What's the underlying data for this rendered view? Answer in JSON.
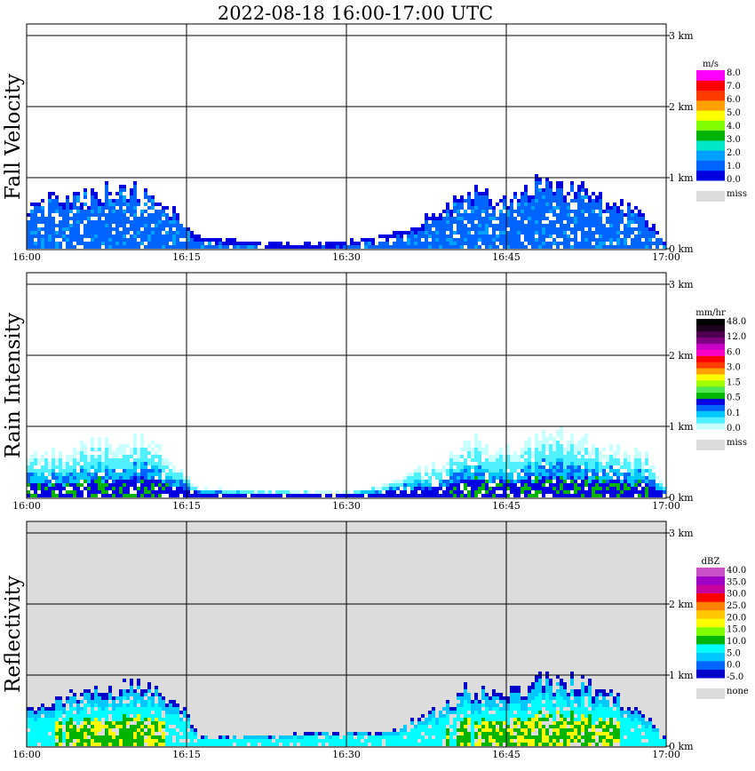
{
  "title": "2022-08-18   16:00-17:00 UTC",
  "colors": {
    "miss": "#dcdcdc"
  },
  "chart_data": [
    {
      "type": "heatmap",
      "ylabel": "Fall Velocity",
      "x_ticks": [
        "16:00",
        "16:15",
        "16:30",
        "16:45",
        "17:00"
      ],
      "y_ticks": [
        "0 km",
        "1 km",
        "2 km",
        "3 km"
      ],
      "ylim_km": [
        0,
        3.0
      ],
      "background": "#ffffff",
      "colorbar": {
        "unit": "m/s",
        "colors": [
          "#0000e0",
          "#0064ff",
          "#00a0ff",
          "#00e6c8",
          "#00b400",
          "#80ff00",
          "#ffff00",
          "#ffa000",
          "#ff3c00",
          "#ff0000",
          "#ff00ff"
        ],
        "labels": [
          "8.0",
          "7.0",
          "6.0",
          "5.0",
          "4.0",
          "3.0",
          "2.0",
          "1.0",
          "0.0"
        ],
        "miss_label": "miss"
      },
      "echo_profile": [
        {
          "t": "16:00",
          "top_km": 0.65
        },
        {
          "t": "16:02",
          "top_km": 0.7
        },
        {
          "t": "16:05",
          "top_km": 0.75
        },
        {
          "t": "16:08",
          "top_km": 0.9
        },
        {
          "t": "16:11",
          "top_km": 0.85
        },
        {
          "t": "16:14",
          "top_km": 0.5
        },
        {
          "t": "16:16",
          "top_km": 0.15
        },
        {
          "t": "16:25",
          "top_km": 0.05
        },
        {
          "t": "16:31",
          "top_km": 0.1
        },
        {
          "t": "16:36",
          "top_km": 0.3
        },
        {
          "t": "16:39",
          "top_km": 0.6
        },
        {
          "t": "16:42",
          "top_km": 0.8
        },
        {
          "t": "16:45",
          "top_km": 0.75
        },
        {
          "t": "16:48",
          "top_km": 0.95
        },
        {
          "t": "16:51",
          "top_km": 0.9
        },
        {
          "t": "16:54",
          "top_km": 0.7
        },
        {
          "t": "16:57",
          "top_km": 0.6
        },
        {
          "t": "17:00",
          "top_km": 0.05
        }
      ]
    },
    {
      "type": "heatmap",
      "ylabel": "Rain Intensity",
      "x_ticks": [
        "16:00",
        "16:15",
        "16:30",
        "16:45",
        "17:00"
      ],
      "y_ticks": [
        "0 km",
        "1 km",
        "2 km",
        "3 km"
      ],
      "ylim_km": [
        0,
        3.0
      ],
      "background": "#ffffff",
      "colorbar": {
        "unit": "mm/hr",
        "colors": [
          "#c8ffff",
          "#50f0ff",
          "#00c8ff",
          "#0064ff",
          "#0000e0",
          "#00b400",
          "#50e650",
          "#a0ff00",
          "#ffff00",
          "#ffa000",
          "#ff3c00",
          "#ff0000",
          "#ff00c8",
          "#c800c8",
          "#800080",
          "#500050",
          "#200020",
          "#000000"
        ],
        "labels": [
          "48.0",
          "12.0",
          "6.0",
          "3.0",
          "1.5",
          "0.5",
          "0.1",
          "0.0"
        ],
        "miss_label": "miss"
      },
      "echo_profile": [
        {
          "t": "16:00",
          "top_km": 0.55
        },
        {
          "t": "16:03",
          "top_km": 0.65
        },
        {
          "t": "16:06",
          "top_km": 0.75
        },
        {
          "t": "16:09",
          "top_km": 0.85
        },
        {
          "t": "16:12",
          "top_km": 0.75
        },
        {
          "t": "16:15",
          "top_km": 0.3
        },
        {
          "t": "16:16",
          "top_km": 0.1
        },
        {
          "t": "16:30",
          "top_km": 0.05
        },
        {
          "t": "16:33",
          "top_km": 0.15
        },
        {
          "t": "16:38",
          "top_km": 0.45
        },
        {
          "t": "16:42",
          "top_km": 0.8
        },
        {
          "t": "16:45",
          "top_km": 0.7
        },
        {
          "t": "16:48",
          "top_km": 0.85
        },
        {
          "t": "16:51",
          "top_km": 0.9
        },
        {
          "t": "16:54",
          "top_km": 0.75
        },
        {
          "t": "16:58",
          "top_km": 0.6
        },
        {
          "t": "17:00",
          "top_km": 0.05
        }
      ]
    },
    {
      "type": "heatmap",
      "ylabel": "Reflectivity",
      "x_ticks": [
        "16:00",
        "16:15",
        "16:30",
        "16:45",
        "17:00"
      ],
      "y_ticks": [
        "0 km",
        "1 km",
        "2 km",
        "3 km"
      ],
      "ylim_km": [
        0,
        3.0
      ],
      "background": "#dcdcdc",
      "colorbar": {
        "unit": "dBZ",
        "colors": [
          "#0000c8",
          "#0064ff",
          "#00c8ff",
          "#00ffff",
          "#00b400",
          "#80ff00",
          "#ffff00",
          "#ffc800",
          "#ff8000",
          "#ff0000",
          "#c8009c",
          "#a000c8",
          "#c850c8"
        ],
        "labels": [
          "40.0",
          "35.0",
          "30.0",
          "25.0",
          "20.0",
          "15.0",
          "10.0",
          "5.0",
          "0.0",
          "-5.0"
        ],
        "miss_label": "none"
      },
      "echo_profile": [
        {
          "t": "16:00",
          "top_km": 0.6
        },
        {
          "t": "16:03",
          "top_km": 0.7
        },
        {
          "t": "16:06",
          "top_km": 0.75
        },
        {
          "t": "16:09",
          "top_km": 0.9
        },
        {
          "t": "16:12",
          "top_km": 0.8
        },
        {
          "t": "16:15",
          "top_km": 0.45
        },
        {
          "t": "16:16",
          "top_km": 0.1
        },
        {
          "t": "16:34",
          "top_km": 0.2
        },
        {
          "t": "16:38",
          "top_km": 0.5
        },
        {
          "t": "16:41",
          "top_km": 0.8
        },
        {
          "t": "16:45",
          "top_km": 0.75
        },
        {
          "t": "16:48",
          "top_km": 0.95
        },
        {
          "t": "16:51",
          "top_km": 0.95
        },
        {
          "t": "16:54",
          "top_km": 0.8
        },
        {
          "t": "16:57",
          "top_km": 0.6
        },
        {
          "t": "17:00",
          "top_km": 0.05
        }
      ]
    }
  ]
}
